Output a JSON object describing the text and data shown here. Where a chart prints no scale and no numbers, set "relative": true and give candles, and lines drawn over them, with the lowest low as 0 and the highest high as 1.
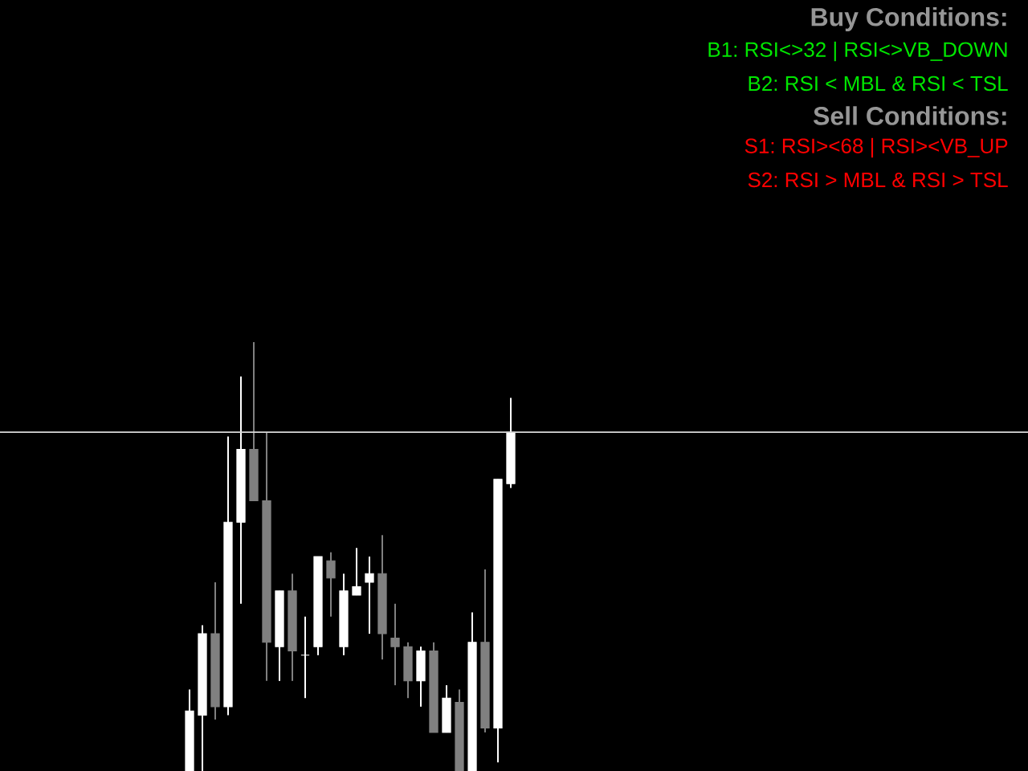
{
  "chart_data": {
    "type": "candlestick",
    "relative": true,
    "categories": [
      null,
      null,
      null,
      null,
      null,
      null,
      null,
      null,
      null,
      null,
      null,
      null,
      null,
      null,
      null,
      null,
      null,
      null,
      null,
      null,
      null,
      null,
      null,
      null,
      null,
      null
    ],
    "ohlc": [
      [
        0,
        0.19,
        0,
        0.14
      ],
      [
        0.13,
        0.34,
        0,
        0.32
      ],
      [
        0.32,
        0.44,
        0.12,
        0.15
      ],
      [
        0.15,
        0.78,
        0.13,
        0.58
      ],
      [
        0.58,
        0.92,
        0.39,
        0.75
      ],
      [
        0.75,
        1,
        0.63,
        0.63
      ],
      [
        0.63,
        0.79,
        0.21,
        0.3
      ],
      [
        0.29,
        0.42,
        0.21,
        0.42
      ],
      [
        0.42,
        0.46,
        0.21,
        0.28
      ],
      [
        0.27,
        0.36,
        0.17,
        0.27
      ],
      [
        0.29,
        0.5,
        0.27,
        0.5
      ],
      [
        0.49,
        0.51,
        0.36,
        0.45
      ],
      [
        0.29,
        0.46,
        0.27,
        0.42
      ],
      [
        0.41,
        0.52,
        0.41,
        0.43
      ],
      [
        0.44,
        0.5,
        0.32,
        0.46
      ],
      [
        0.46,
        0.55,
        0.26,
        0.32
      ],
      [
        0.31,
        0.39,
        0.2,
        0.29
      ],
      [
        0.29,
        0.3,
        0.17,
        0.21
      ],
      [
        0.21,
        0.29,
        0.15,
        0.28
      ],
      [
        0.28,
        0.3,
        0.09,
        0.09
      ],
      [
        0.09,
        0.2,
        0.09,
        0.17
      ],
      [
        0.16,
        0.19,
        0,
        0
      ],
      [
        0,
        0.37,
        0,
        0.3
      ],
      [
        0.3,
        0.47,
        0.09,
        0.1
      ],
      [
        0.1,
        0.68,
        0.02,
        0.68
      ],
      [
        0.67,
        0.87,
        0.66,
        0.79
      ]
    ],
    "colors": [
      "#ffffff",
      "#ffffff",
      "#808080",
      "#ffffff",
      "#ffffff",
      "#808080",
      "#808080",
      "#ffffff",
      "#808080",
      "#ffffff",
      "#ffffff",
      "#808080",
      "#ffffff",
      "#ffffff",
      "#ffffff",
      "#808080",
      "#808080",
      "#808080",
      "#ffffff",
      "#808080",
      "#ffffff",
      "#808080",
      "#ffffff",
      "#808080",
      "#ffffff",
      "#ffffff"
    ],
    "ref_lines": [
      {
        "axis": "y",
        "value": 0.79,
        "color": "#d9d9d9"
      }
    ],
    "annotations": [
      "**Buy Conditions:**",
      "B1: RSI<>32 | RSI<>VB_DOWN",
      "B2: RSI < MBL & RSI < TSL",
      "**Sell Conditions:**",
      "S1: RSI><68 | RSI><VB_UP",
      "S2: RSI > MBL & RSI > TSL"
    ]
  }
}
